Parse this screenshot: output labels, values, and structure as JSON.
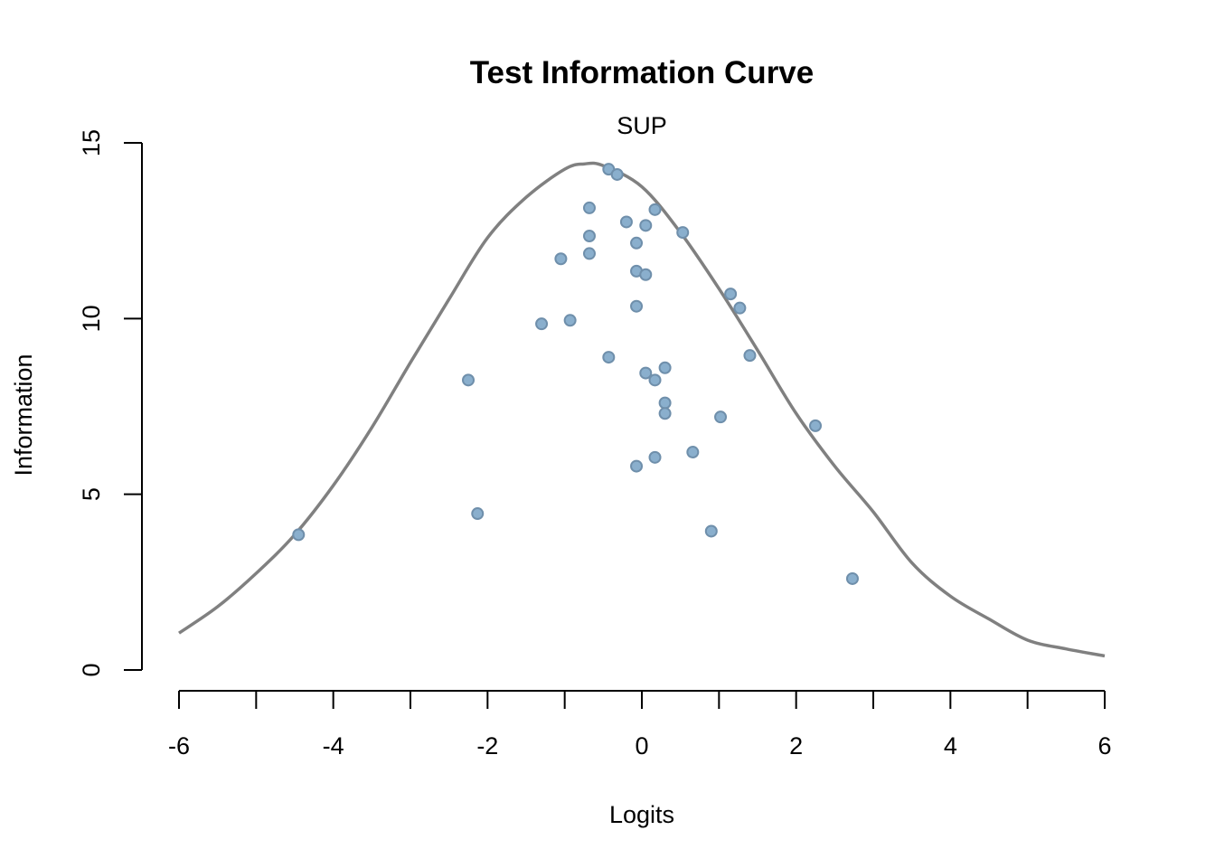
{
  "chart_data": {
    "type": "scatter",
    "title": "Test Information Curve",
    "subtitle": "SUP",
    "xlabel": "Logits",
    "ylabel": "Information",
    "xlim": [
      -6,
      6
    ],
    "ylim": [
      0,
      15
    ],
    "x_ticks": [
      -6,
      -5,
      -4,
      -3,
      -2,
      -1,
      0,
      1,
      2,
      3,
      4,
      5,
      6
    ],
    "x_tick_labels": [
      "-6",
      "-4",
      "-2",
      "0",
      "2",
      "4",
      "6"
    ],
    "x_tick_label_values": [
      -6,
      -4,
      -2,
      0,
      2,
      4,
      6
    ],
    "y_tick_labels": [
      "0",
      "5",
      "10",
      "15"
    ],
    "y_tick_label_values": [
      0,
      5,
      10,
      15
    ],
    "grid": false,
    "series": [
      {
        "kind": "line",
        "color": "#808080",
        "x": [
          -6,
          -5.5,
          -5,
          -4.5,
          -4,
          -3.5,
          -3,
          -2.5,
          -2,
          -1.5,
          -1,
          -0.75,
          -0.5,
          0,
          0.5,
          1,
          1.5,
          2,
          2.5,
          3,
          3.5,
          4,
          4.5,
          5,
          5.5,
          6
        ],
        "y": [
          1.05,
          1.8,
          2.75,
          3.85,
          5.25,
          6.9,
          8.75,
          10.55,
          12.3,
          13.45,
          14.25,
          14.4,
          14.35,
          13.75,
          12.45,
          10.85,
          9.1,
          7.3,
          5.8,
          4.5,
          3.05,
          2.1,
          1.45,
          0.85,
          0.6,
          0.4
        ]
      },
      {
        "kind": "points",
        "color": "#8aafcd",
        "edge_color": "#6f8fab",
        "points": [
          [
            -4.45,
            3.85
          ],
          [
            -2.25,
            8.25
          ],
          [
            -2.13,
            4.45
          ],
          [
            -1.3,
            9.85
          ],
          [
            -1.05,
            11.7
          ],
          [
            -0.93,
            9.95
          ],
          [
            -0.68,
            13.15
          ],
          [
            -0.68,
            12.35
          ],
          [
            -0.68,
            11.85
          ],
          [
            -0.43,
            14.25
          ],
          [
            -0.43,
            8.9
          ],
          [
            -0.32,
            14.1
          ],
          [
            -0.2,
            12.75
          ],
          [
            -0.07,
            12.15
          ],
          [
            -0.07,
            11.35
          ],
          [
            -0.07,
            10.35
          ],
          [
            -0.07,
            5.8
          ],
          [
            0.05,
            12.65
          ],
          [
            0.05,
            11.25
          ],
          [
            0.05,
            8.45
          ],
          [
            0.17,
            13.1
          ],
          [
            0.17,
            8.25
          ],
          [
            0.17,
            6.05
          ],
          [
            0.3,
            8.6
          ],
          [
            0.3,
            7.6
          ],
          [
            0.3,
            7.3
          ],
          [
            0.53,
            12.45
          ],
          [
            0.66,
            6.2
          ],
          [
            0.9,
            3.95
          ],
          [
            1.02,
            7.2
          ],
          [
            1.15,
            10.7
          ],
          [
            1.27,
            10.3
          ],
          [
            1.4,
            8.95
          ],
          [
            2.25,
            6.95
          ],
          [
            2.73,
            2.6
          ]
        ]
      }
    ]
  }
}
